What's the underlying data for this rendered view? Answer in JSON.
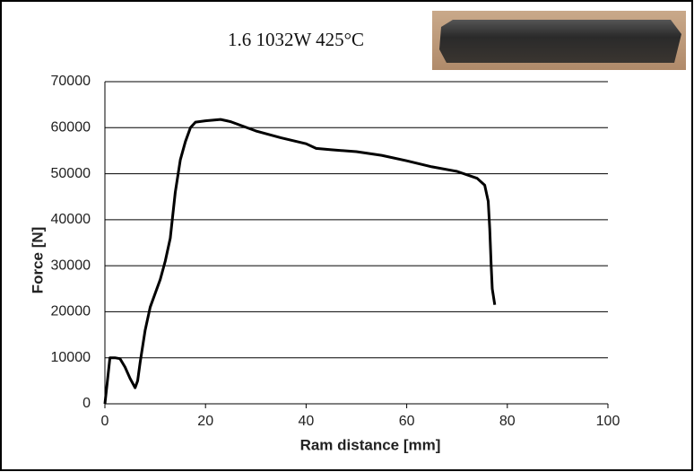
{
  "chart_data": {
    "type": "line",
    "title": "1.6 1032W 425°C",
    "x_label": "Ram distance [mm]",
    "y_label": "Force [N]",
    "x": [
      0,
      0.5,
      1,
      2,
      3,
      4,
      5,
      6,
      6.5,
      7,
      8,
      9,
      10,
      11,
      12,
      13,
      14,
      15,
      16,
      17,
      18,
      20,
      22,
      23,
      25,
      30,
      35,
      40,
      42,
      45,
      50,
      55,
      60,
      65,
      70,
      74,
      75.5,
      76.2,
      76.5,
      76.8,
      77,
      77.5
    ],
    "values": [
      0,
      5000,
      10000,
      10000,
      9800,
      8000,
      5500,
      3500,
      5000,
      9000,
      16000,
      21000,
      24000,
      27000,
      31000,
      36000,
      46000,
      53000,
      57000,
      60000,
      61200,
      61500,
      61700,
      61800,
      61300,
      59300,
      57800,
      56500,
      55500,
      55200,
      54800,
      54000,
      52800,
      51500,
      50500,
      49000,
      47500,
      44000,
      38000,
      30000,
      25000,
      21500
    ],
    "color": "#000000",
    "xlim": [
      0,
      100
    ],
    "xticks": [
      0,
      20,
      40,
      60,
      80,
      100
    ],
    "ylim": [
      0,
      70000
    ],
    "yticks": [
      0,
      10000,
      20000,
      30000,
      40000,
      50000,
      60000,
      70000
    ],
    "grid": true
  }
}
